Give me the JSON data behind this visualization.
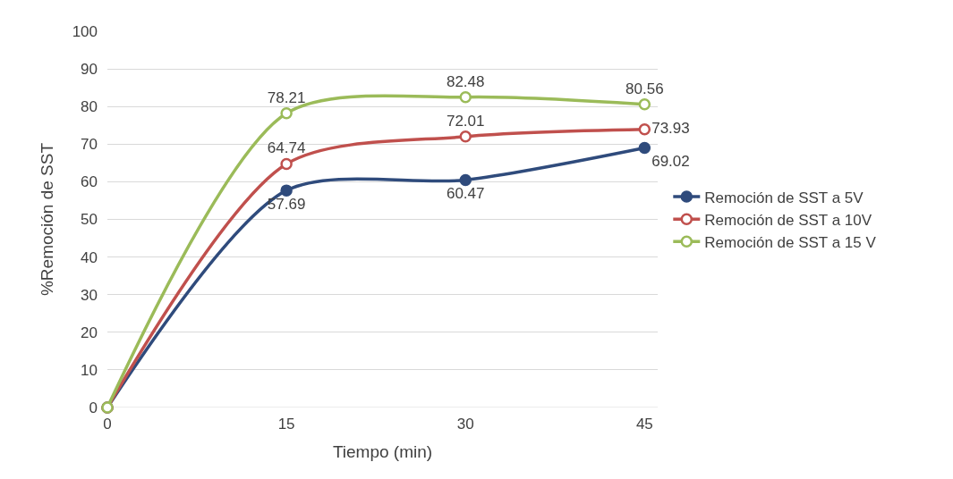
{
  "chart_data": {
    "type": "line",
    "xlabel": "Tiempo (min)",
    "ylabel": "%Remoción de SST",
    "x": [
      0,
      15,
      30,
      45
    ],
    "series": [
      {
        "name": "Remoción de SST a 5V",
        "color": "#2f4b7c",
        "values": [
          0,
          57.69,
          60.47,
          69.02
        ],
        "value_labels": [
          null,
          "57.69",
          "60.47",
          "69.02"
        ]
      },
      {
        "name": "Remoción de SST a 10V",
        "color": "#c0504d",
        "values": [
          0,
          64.74,
          72.01,
          73.93
        ],
        "value_labels": [
          null,
          "64.74",
          "72.01",
          "73.93"
        ]
      },
      {
        "name": "Remoción de SST a 15 V",
        "color": "#9bbb59",
        "values": [
          0,
          78.21,
          82.48,
          80.56
        ],
        "value_labels": [
          null,
          "78.21",
          "82.48",
          "80.56"
        ]
      }
    ],
    "xlim": [
      0,
      46.1
    ],
    "xticks": [
      0,
      15,
      30,
      45
    ],
    "ylim": [
      0,
      100
    ],
    "yticks": [
      0,
      10,
      20,
      30,
      40,
      50,
      60,
      70,
      80,
      90,
      100
    ],
    "grid": "y",
    "legend": "right",
    "marker": "circle"
  }
}
